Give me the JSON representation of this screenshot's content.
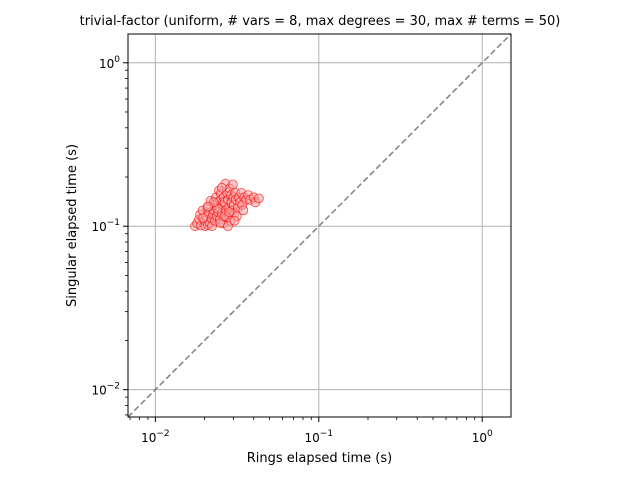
{
  "chart_data": {
    "type": "scatter",
    "title": "trivial-factor (uniform, # vars = 8, max degrees = 30, max # terms = 50)",
    "xlabel": "Rings elapsed time (s)",
    "ylabel": "Singular elapsed time (s)",
    "xscale": "log",
    "yscale": "log",
    "xlim": [
      0.0068,
      1.5
    ],
    "ylim": [
      0.0068,
      1.5
    ],
    "x_ticks": [
      {
        "value": 0.01,
        "base": "10",
        "exp": "−2"
      },
      {
        "value": 0.1,
        "base": "10",
        "exp": "−1"
      },
      {
        "value": 1,
        "base": "10",
        "exp": "0"
      }
    ],
    "y_ticks": [
      {
        "value": 0.01,
        "base": "10",
        "exp": "−2"
      },
      {
        "value": 0.1,
        "base": "10",
        "exp": "−1"
      },
      {
        "value": 1,
        "base": "10",
        "exp": "0"
      }
    ],
    "grid": true,
    "reference_line": "y = x",
    "colors": {
      "marker_edge": "#ff0000",
      "marker_fill": "#f4a0a0",
      "diagonal": "#808080",
      "grid": "#b0b0b0"
    },
    "series": [
      {
        "points": [
          [
            0.0175,
            0.1
          ],
          [
            0.018,
            0.104
          ],
          [
            0.0185,
            0.11
          ],
          [
            0.0188,
            0.118
          ],
          [
            0.019,
            0.101
          ],
          [
            0.0195,
            0.125
          ],
          [
            0.02,
            0.108
          ],
          [
            0.0202,
            0.1
          ],
          [
            0.0205,
            0.115
          ],
          [
            0.0208,
            0.13
          ],
          [
            0.021,
            0.102
          ],
          [
            0.0212,
            0.12
          ],
          [
            0.0215,
            0.105
          ],
          [
            0.0218,
            0.143
          ],
          [
            0.022,
            0.112
          ],
          [
            0.0222,
            0.1
          ],
          [
            0.0225,
            0.118
          ],
          [
            0.0228,
            0.125
          ],
          [
            0.023,
            0.135
          ],
          [
            0.0232,
            0.108
          ],
          [
            0.0235,
            0.15
          ],
          [
            0.0238,
            0.115
          ],
          [
            0.024,
            0.14
          ],
          [
            0.0242,
            0.122
          ],
          [
            0.0245,
            0.165
          ],
          [
            0.0246,
            0.13
          ],
          [
            0.0248,
            0.11
          ],
          [
            0.025,
            0.145
          ],
          [
            0.0252,
            0.158
          ],
          [
            0.0255,
            0.12
          ],
          [
            0.0258,
            0.135
          ],
          [
            0.026,
            0.104
          ],
          [
            0.0262,
            0.15
          ],
          [
            0.0265,
            0.14
          ],
          [
            0.0268,
            0.182
          ],
          [
            0.027,
            0.125
          ],
          [
            0.0272,
            0.113
          ],
          [
            0.0275,
            0.16
          ],
          [
            0.0278,
            0.145
          ],
          [
            0.028,
            0.13
          ],
          [
            0.0282,
            0.118
          ],
          [
            0.0285,
            0.17
          ],
          [
            0.0288,
            0.108
          ],
          [
            0.029,
            0.155
          ],
          [
            0.0292,
            0.14
          ],
          [
            0.0295,
            0.125
          ],
          [
            0.0298,
            0.18
          ],
          [
            0.03,
            0.15
          ],
          [
            0.0302,
            0.135
          ],
          [
            0.0305,
            0.12
          ],
          [
            0.0308,
            0.16
          ],
          [
            0.031,
            0.145
          ],
          [
            0.0315,
            0.115
          ],
          [
            0.032,
            0.13
          ],
          [
            0.0325,
            0.15
          ],
          [
            0.033,
            0.14
          ],
          [
            0.0335,
            0.16
          ],
          [
            0.034,
            0.135
          ],
          [
            0.0345,
            0.125
          ],
          [
            0.035,
            0.15
          ],
          [
            0.036,
            0.145
          ],
          [
            0.037,
            0.155
          ],
          [
            0.038,
            0.145
          ],
          [
            0.04,
            0.15
          ],
          [
            0.041,
            0.14
          ],
          [
            0.043,
            0.148
          ],
          [
            0.025,
            0.105
          ],
          [
            0.0265,
            0.115
          ],
          [
            0.024,
            0.128
          ],
          [
            0.0228,
            0.14
          ],
          [
            0.0255,
            0.172
          ],
          [
            0.0278,
            0.1
          ],
          [
            0.0196,
            0.112
          ],
          [
            0.021,
            0.132
          ],
          [
            0.0283,
            0.122
          ],
          [
            0.0305,
            0.108
          ]
        ]
      }
    ]
  }
}
